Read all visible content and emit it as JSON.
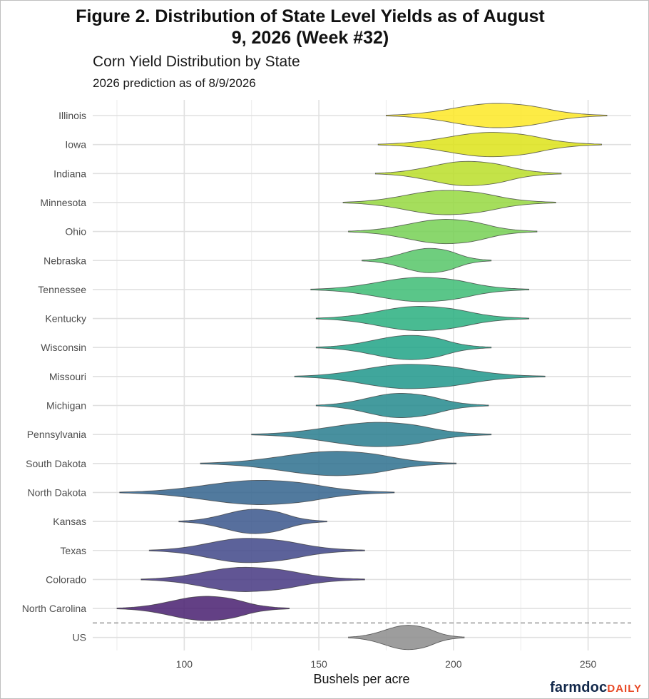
{
  "figure": {
    "title": "Figure 2. Distribution of State Level Yields as of August 9, 2026 (Week #32)"
  },
  "logo": {
    "part1": "farmdoc",
    "part2": "DAILY"
  },
  "chart_data": {
    "type": "violin",
    "title": "Corn Yield Distribution by State",
    "subtitle": "2026 prediction as of 8/9/2026",
    "xlabel": "Bushels per acre",
    "ylabel": "",
    "xlim": [
      66,
      266
    ],
    "xticks": [
      100,
      150,
      200,
      250
    ],
    "grid": true,
    "reference_line": {
      "style": "dashed",
      "between": [
        "North Carolina",
        "US"
      ]
    },
    "states": [
      {
        "name": "Illinois",
        "min": 175,
        "max": 257,
        "median": 216,
        "halfwidth": 17,
        "color": "#fde725"
      },
      {
        "name": "Iowa",
        "min": 172,
        "max": 255,
        "median": 214,
        "halfwidth": 17,
        "color": "#dde318"
      },
      {
        "name": "Indiana",
        "min": 171,
        "max": 240,
        "median": 205,
        "halfwidth": 17,
        "color": "#bade28"
      },
      {
        "name": "Minnesota",
        "min": 159,
        "max": 238,
        "median": 197,
        "halfwidth": 17,
        "color": "#95d840"
      },
      {
        "name": "Ohio",
        "min": 161,
        "max": 231,
        "median": 197,
        "halfwidth": 17,
        "color": "#75d054"
      },
      {
        "name": "Nebraska",
        "min": 166,
        "max": 214,
        "median": 191,
        "halfwidth": 17,
        "color": "#56c667"
      },
      {
        "name": "Tennessee",
        "min": 147,
        "max": 228,
        "median": 188,
        "halfwidth": 17,
        "color": "#3dbc74"
      },
      {
        "name": "Kentucky",
        "min": 149,
        "max": 228,
        "median": 187,
        "halfwidth": 17,
        "color": "#29af7f"
      },
      {
        "name": "Wisconsin",
        "min": 149,
        "max": 214,
        "median": 184,
        "halfwidth": 17,
        "color": "#20a386"
      },
      {
        "name": "Missouri",
        "min": 141,
        "max": 234,
        "median": 183,
        "halfwidth": 17,
        "color": "#1f968b"
      },
      {
        "name": "Michigan",
        "min": 149,
        "max": 213,
        "median": 180,
        "halfwidth": 17,
        "color": "#238a8d"
      },
      {
        "name": "Pennsylvania",
        "min": 125,
        "max": 214,
        "median": 172,
        "halfwidth": 17,
        "color": "#287d8e"
      },
      {
        "name": "South Dakota",
        "min": 106,
        "max": 201,
        "median": 156,
        "halfwidth": 17,
        "color": "#2d708e"
      },
      {
        "name": "North Dakota",
        "min": 76,
        "max": 178,
        "median": 128,
        "halfwidth": 17,
        "color": "#33638d"
      },
      {
        "name": "Kansas",
        "min": 98,
        "max": 153,
        "median": 126,
        "halfwidth": 17,
        "color": "#39568c"
      },
      {
        "name": "Texas",
        "min": 87,
        "max": 167,
        "median": 123,
        "halfwidth": 17,
        "color": "#404688"
      },
      {
        "name": "Colorado",
        "min": 84,
        "max": 167,
        "median": 122,
        "halfwidth": 17,
        "color": "#453781"
      },
      {
        "name": "North Carolina",
        "min": 75,
        "max": 139,
        "median": 108,
        "halfwidth": 17,
        "color": "#481f70"
      },
      {
        "name": "US",
        "min": 161,
        "max": 204,
        "median": 183,
        "halfwidth": 17,
        "color": "#8c8c8c"
      }
    ]
  }
}
